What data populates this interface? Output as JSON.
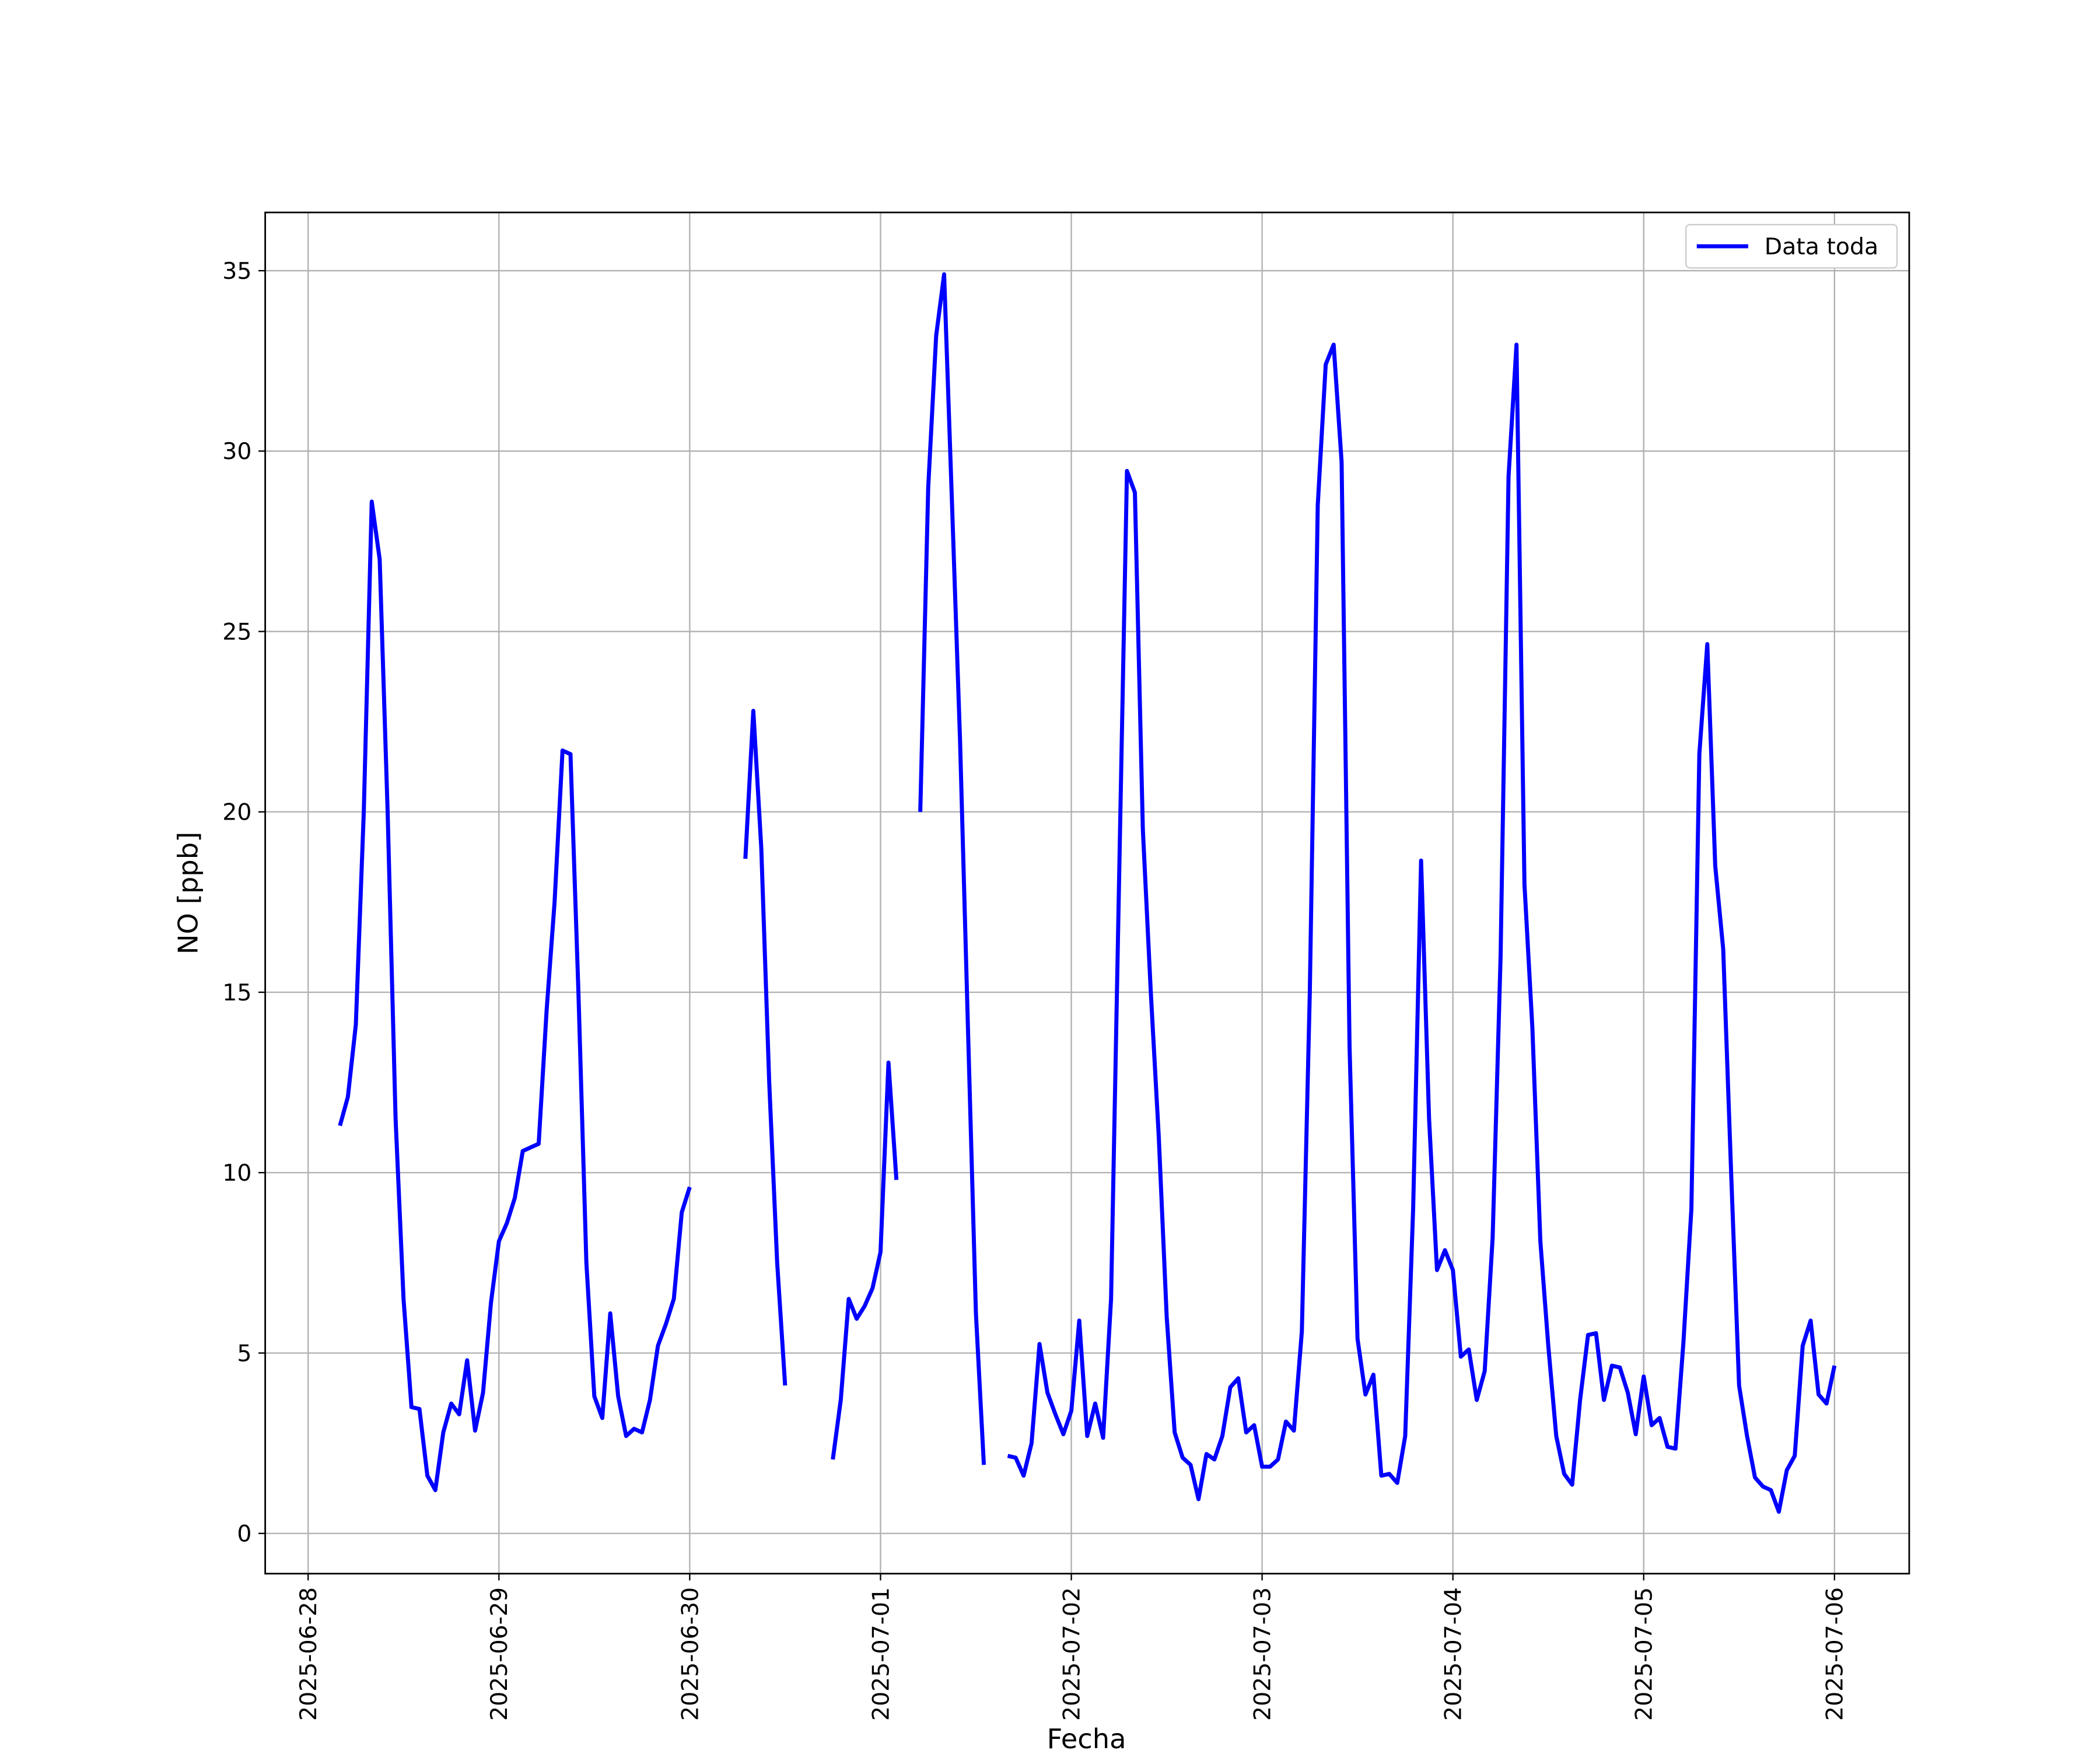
{
  "chart_data": {
    "type": "line",
    "xlabel": "Fecha",
    "ylabel": "NO [ppb]",
    "x": [
      "2025-06-28T04:00",
      "2025-06-28T05:00",
      "2025-06-28T06:00",
      "2025-06-28T07:00",
      "2025-06-28T08:00",
      "2025-06-28T09:00",
      "2025-06-28T10:00",
      "2025-06-28T11:00",
      "2025-06-28T12:00",
      "2025-06-28T13:00",
      "2025-06-28T14:00",
      "2025-06-28T15:00",
      "2025-06-28T16:00",
      "2025-06-28T17:00",
      "2025-06-28T18:00",
      "2025-06-28T19:00",
      "2025-06-28T20:00",
      "2025-06-28T21:00",
      "2025-06-28T22:00",
      "2025-06-28T23:00",
      "2025-06-29T00:00",
      "2025-06-29T01:00",
      "2025-06-29T02:00",
      "2025-06-29T03:00",
      "2025-06-29T04:00",
      "2025-06-29T05:00",
      "2025-06-29T06:00",
      "2025-06-29T07:00",
      "2025-06-29T08:00",
      "2025-06-29T09:00",
      "2025-06-29T10:00",
      "2025-06-29T11:00",
      "2025-06-29T12:00",
      "2025-06-29T13:00",
      "2025-06-29T14:00",
      "2025-06-29T15:00",
      "2025-06-29T16:00",
      "2025-06-29T17:00",
      "2025-06-29T18:00",
      "2025-06-29T19:00",
      "2025-06-29T20:00",
      "2025-06-29T21:00",
      "2025-06-29T22:00",
      "2025-06-29T23:00",
      "2025-06-30T00:00",
      "2025-06-30T01:00",
      "2025-06-30T02:00",
      "2025-06-30T03:00",
      "2025-06-30T04:00",
      "2025-06-30T05:00",
      "2025-06-30T06:00",
      "2025-06-30T07:00",
      "2025-06-30T08:00",
      "2025-06-30T09:00",
      "2025-06-30T10:00",
      "2025-06-30T11:00",
      "2025-06-30T12:00",
      "2025-06-30T13:00",
      "2025-06-30T14:00",
      "2025-06-30T15:00",
      "2025-06-30T16:00",
      "2025-06-30T17:00",
      "2025-06-30T18:00",
      "2025-06-30T19:00",
      "2025-06-30T20:00",
      "2025-06-30T21:00",
      "2025-06-30T22:00",
      "2025-06-30T23:00",
      "2025-07-01T00:00",
      "2025-07-01T01:00",
      "2025-07-01T02:00",
      "2025-07-01T03:00",
      "2025-07-01T04:00",
      "2025-07-01T05:00",
      "2025-07-01T06:00",
      "2025-07-01T07:00",
      "2025-07-01T08:00",
      "2025-07-01T09:00",
      "2025-07-01T10:00",
      "2025-07-01T11:00",
      "2025-07-01T12:00",
      "2025-07-01T13:00",
      "2025-07-01T14:00",
      "2025-07-01T15:00",
      "2025-07-01T16:00",
      "2025-07-01T17:00",
      "2025-07-01T18:00",
      "2025-07-01T19:00",
      "2025-07-01T20:00",
      "2025-07-01T21:00",
      "2025-07-01T22:00",
      "2025-07-01T23:00",
      "2025-07-02T00:00",
      "2025-07-02T01:00",
      "2025-07-02T02:00",
      "2025-07-02T03:00",
      "2025-07-02T04:00",
      "2025-07-02T05:00",
      "2025-07-02T06:00",
      "2025-07-02T07:00",
      "2025-07-02T08:00",
      "2025-07-02T09:00",
      "2025-07-02T10:00",
      "2025-07-02T11:00",
      "2025-07-02T12:00",
      "2025-07-02T13:00",
      "2025-07-02T14:00",
      "2025-07-02T15:00",
      "2025-07-02T16:00",
      "2025-07-02T17:00",
      "2025-07-02T18:00",
      "2025-07-02T19:00",
      "2025-07-02T20:00",
      "2025-07-02T21:00",
      "2025-07-02T22:00",
      "2025-07-02T23:00",
      "2025-07-03T00:00",
      "2025-07-03T01:00",
      "2025-07-03T02:00",
      "2025-07-03T03:00",
      "2025-07-03T04:00",
      "2025-07-03T05:00",
      "2025-07-03T06:00",
      "2025-07-03T07:00",
      "2025-07-03T08:00",
      "2025-07-03T09:00",
      "2025-07-03T10:00",
      "2025-07-03T11:00",
      "2025-07-03T12:00",
      "2025-07-03T13:00",
      "2025-07-03T14:00",
      "2025-07-03T15:00",
      "2025-07-03T16:00",
      "2025-07-03T17:00",
      "2025-07-03T18:00",
      "2025-07-03T19:00",
      "2025-07-03T20:00",
      "2025-07-03T21:00",
      "2025-07-03T22:00",
      "2025-07-03T23:00",
      "2025-07-04T00:00",
      "2025-07-04T01:00",
      "2025-07-04T02:00",
      "2025-07-04T03:00",
      "2025-07-04T04:00",
      "2025-07-04T05:00",
      "2025-07-04T06:00",
      "2025-07-04T07:00",
      "2025-07-04T08:00",
      "2025-07-04T09:00",
      "2025-07-04T10:00",
      "2025-07-04T11:00",
      "2025-07-04T12:00",
      "2025-07-04T13:00",
      "2025-07-04T14:00",
      "2025-07-04T15:00",
      "2025-07-04T16:00",
      "2025-07-04T17:00",
      "2025-07-04T18:00",
      "2025-07-04T19:00",
      "2025-07-04T20:00",
      "2025-07-04T21:00",
      "2025-07-04T22:00",
      "2025-07-04T23:00",
      "2025-07-05T00:00",
      "2025-07-05T01:00",
      "2025-07-05T02:00",
      "2025-07-05T03:00",
      "2025-07-05T04:00",
      "2025-07-05T05:00",
      "2025-07-05T06:00",
      "2025-07-05T07:00",
      "2025-07-05T08:00",
      "2025-07-05T09:00",
      "2025-07-05T10:00",
      "2025-07-05T11:00",
      "2025-07-05T12:00",
      "2025-07-05T13:00",
      "2025-07-05T14:00",
      "2025-07-05T15:00",
      "2025-07-05T16:00",
      "2025-07-05T17:00",
      "2025-07-05T18:00",
      "2025-07-05T19:00",
      "2025-07-05T20:00",
      "2025-07-05T21:00",
      "2025-07-05T22:00",
      "2025-07-05T23:00",
      "2025-07-06T00:00"
    ],
    "series": [
      {
        "name": "Data toda",
        "color": "#0000ff",
        "values": [
          11.3,
          12.1,
          14.1,
          20,
          28.6,
          27,
          20,
          11.5,
          6.5,
          3.5,
          3.45,
          1.6,
          1.2,
          2.8,
          3.6,
          3.3,
          4.8,
          2.85,
          3.9,
          6.4,
          8.1,
          8.6,
          9.3,
          10.6,
          10.7,
          10.8,
          14.5,
          17.5,
          21.7,
          21.6,
          15,
          7.5,
          3.8,
          3.2,
          6.1,
          3.8,
          2.7,
          2.9,
          2.8,
          3.7,
          5.2,
          5.8,
          6.5,
          8.9,
          9.6,
          null,
          null,
          null,
          null,
          null,
          null,
          18.7,
          22.8,
          19,
          12.5,
          7.5,
          4.1,
          null,
          null,
          null,
          null,
          null,
          2.05,
          3.7,
          6.5,
          5.95,
          6.3,
          6.8,
          7.8,
          13.05,
          9.8,
          null,
          null,
          20,
          29,
          33.2,
          34.9,
          28.5,
          22,
          14,
          6.1,
          1.9,
          null,
          null,
          2.15,
          2.1,
          1.6,
          2.5,
          5.25,
          3.9,
          3.3,
          2.75,
          3.4,
          5.9,
          2.7,
          3.6,
          2.65,
          6.5,
          18,
          29.45,
          28.85,
          19.5,
          15,
          11,
          6,
          2.8,
          2.1,
          1.9,
          0.95,
          2.2,
          2.05,
          2.7,
          4.05,
          4.3,
          2.8,
          3,
          1.85,
          1.85,
          2.05,
          3.1,
          2.85,
          5.6,
          15,
          28.5,
          32.4,
          32.95,
          29.7,
          13.5,
          5.4,
          3.85,
          4.4,
          1.6,
          1.65,
          1.4,
          2.7,
          9,
          18.65,
          11.5,
          7.3,
          7.85,
          7.3,
          4.9,
          5.1,
          3.7,
          4.5,
          8.2,
          16,
          29.3,
          32.95,
          18,
          14,
          8.1,
          5.2,
          2.7,
          1.65,
          1.35,
          3.7,
          5.5,
          5.55,
          3.7,
          4.65,
          4.6,
          3.9,
          2.75,
          4.35,
          3,
          3.2,
          2.4,
          2.35,
          5.3,
          9,
          21.6,
          24.65,
          18.5,
          16.2,
          10,
          4.1,
          2.7,
          1.55,
          1.3,
          1.2,
          0.6,
          1.75,
          2.15,
          5.2,
          5.9,
          3.85,
          3.6,
          4.65
        ]
      }
    ],
    "xlim": [
      "2025-06-27T18:36",
      "2025-07-06T09:24"
    ],
    "xticks": [
      "2025-06-28",
      "2025-06-29",
      "2025-06-30",
      "2025-07-01",
      "2025-07-02",
      "2025-07-03",
      "2025-07-04",
      "2025-07-05",
      "2025-07-06"
    ],
    "ylim": [
      -1.115,
      36.615
    ],
    "yticks": [
      0,
      5,
      10,
      15,
      20,
      25,
      30,
      35
    ],
    "grid": true,
    "legend": "upper right"
  }
}
